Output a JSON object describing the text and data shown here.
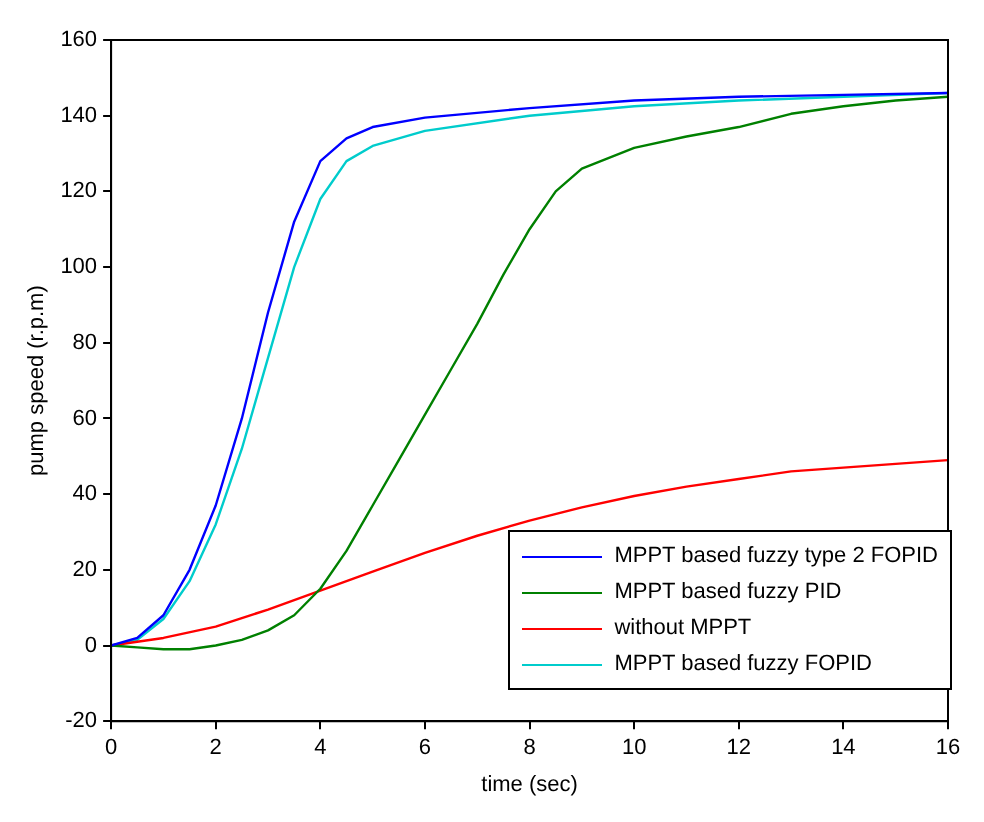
{
  "chart_data": {
    "type": "line",
    "xlabel": "time (sec)",
    "ylabel": "pump speed (r.p.m)",
    "xlim": [
      0,
      16
    ],
    "xticks": [
      0,
      2,
      4,
      6,
      8,
      10,
      12,
      14,
      16
    ],
    "ylim": [
      -20,
      160
    ],
    "yticks": [
      -20,
      0,
      20,
      40,
      60,
      80,
      100,
      120,
      140,
      160
    ],
    "grid": false,
    "legend": "bottom right",
    "marker": "none",
    "line_style": "solid",
    "series": [
      {
        "name": "MPPT based fuzzy type 2 FOPID",
        "color": "#0000ff",
        "x": [
          0,
          0.5,
          1,
          1.5,
          2,
          2.5,
          3,
          3.5,
          4,
          4.5,
          5,
          6,
          8,
          10,
          12,
          14,
          16
        ],
        "values": [
          0,
          2,
          8,
          20,
          37,
          60,
          88,
          112,
          128,
          134,
          137,
          139.5,
          142,
          144,
          145,
          145.5,
          146
        ]
      },
      {
        "name": "MPPT based fuzzy PID",
        "color": "#008000",
        "x": [
          0,
          0.5,
          1,
          1.5,
          2,
          2.5,
          3,
          3.5,
          4,
          4.5,
          5,
          5.5,
          6,
          6.5,
          7,
          7.5,
          8,
          8.5,
          9,
          10,
          11,
          12,
          13,
          14,
          15,
          16
        ],
        "values": [
          0,
          -0.5,
          -1,
          -1,
          0,
          1.5,
          4,
          8,
          15,
          25,
          37,
          49,
          61,
          73,
          85,
          98,
          110,
          120,
          126,
          131.5,
          134.5,
          137,
          140.5,
          142.5,
          144,
          145
        ]
      },
      {
        "name": "without MPPT",
        "color": "#ff0000",
        "x": [
          0,
          1,
          2,
          3,
          4,
          5,
          6,
          7,
          8,
          9,
          10,
          11,
          12,
          13,
          14,
          15,
          16
        ],
        "values": [
          0,
          2,
          5,
          9.5,
          14.5,
          19.5,
          24.5,
          29,
          33,
          36.5,
          39.5,
          42,
          44,
          46,
          47,
          48,
          49
        ]
      },
      {
        "name": "MPPT based fuzzy FOPID",
        "color": "#00cccc",
        "x": [
          0,
          0.5,
          1,
          1.5,
          2,
          2.5,
          3,
          3.5,
          4,
          4.5,
          5,
          6,
          8,
          10,
          12,
          14,
          16
        ],
        "values": [
          0,
          1.5,
          7,
          17,
          32,
          52,
          76,
          100,
          118,
          128,
          132,
          136,
          140,
          142.5,
          144,
          145,
          146
        ]
      }
    ]
  }
}
